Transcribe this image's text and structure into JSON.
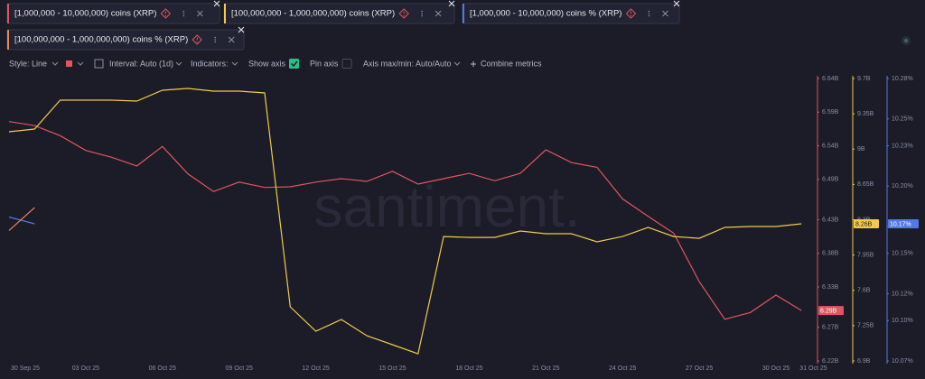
{
  "toolbar": {
    "style": "Style: Line",
    "interval": "Interval: Auto (1d)",
    "indicators": "Indicators:",
    "show_axis": "Show axis",
    "pin_axis": "Pin axis",
    "axis_maxmin": "Axis max/min: Auto/Auto",
    "combine": "Combine metrics"
  },
  "chart_data": {
    "type": "line",
    "watermark": "santiment.",
    "categories": [
      "30 Sep 25",
      null,
      null,
      "03 Oct 25",
      null,
      null,
      "06 Oct 25",
      null,
      null,
      "09 Oct 25",
      null,
      null,
      "12 Oct 25",
      null,
      null,
      "15 Oct 25",
      null,
      null,
      "18 Oct 25",
      null,
      null,
      "21 Oct 25",
      null,
      null,
      "24 Oct 25",
      null,
      null,
      "27 Oct 25",
      null,
      null,
      "30 Oct 25",
      "31 Oct 25"
    ],
    "series": [
      {
        "name": "[1,000,000 - 10,000,000) coins (XRP)",
        "color": "#e0555f",
        "axis": "y",
        "last_label": "6.29B",
        "values": [
          6.576,
          6.57,
          6.555,
          6.533,
          6.523,
          6.51,
          6.539,
          6.498,
          6.472,
          6.486,
          6.478,
          6.479,
          6.486,
          6.491,
          6.487,
          6.502,
          6.483,
          6.491,
          6.499,
          6.488,
          6.499,
          6.534,
          6.515,
          6.508,
          6.461,
          6.435,
          6.41,
          6.338,
          6.282,
          6.292,
          6.318,
          6.295
        ]
      },
      {
        "name": "[100,000,000 - 1,000,000,000) coins (XRP)",
        "color": "#f2c94c",
        "axis": "y2",
        "last_label": "8.26B",
        "values": [
          9.172,
          9.199,
          9.485,
          9.485,
          9.485,
          9.476,
          9.584,
          9.602,
          9.575,
          9.575,
          9.557,
          7.437,
          7.195,
          7.311,
          7.15,
          7.061,
          6.971,
          8.134,
          8.125,
          8.125,
          8.188,
          8.161,
          8.161,
          8.081,
          8.134,
          8.224,
          8.134,
          8.116,
          8.224,
          8.233,
          8.233,
          8.26
        ]
      },
      {
        "name": "[1,000,000 - 10,000,000) coins % (XRP)",
        "color": "#5478e4",
        "axis": "y3",
        "last_label": "10.17%",
        "values": [
          10.177,
          10.172,
          null,
          null,
          null,
          null,
          null,
          null,
          null,
          null,
          null,
          null,
          null,
          null,
          null,
          null,
          null,
          null,
          null,
          null,
          null,
          null,
          null,
          null,
          null,
          null,
          null,
          null,
          null,
          null,
          null,
          null
        ]
      },
      {
        "name": "[100,000,000 - 1,000,000,000) coins % (XRP)",
        "color": "#e8875a",
        "axis": "y3",
        "values": [
          10.167,
          10.184,
          null,
          null,
          null,
          null,
          null,
          null,
          null,
          null,
          null,
          null,
          null,
          null,
          null,
          null,
          null,
          null,
          null,
          null,
          null,
          null,
          null,
          null,
          null,
          null,
          null,
          null,
          null,
          null,
          null,
          null
        ]
      }
    ],
    "ylim": [
      6.22,
      6.64
    ],
    "yticks": [
      {
        "value": 6.64,
        "label": "6.64B"
      },
      {
        "value": 6.59,
        "label": "6.59B"
      },
      {
        "value": 6.54,
        "label": "6.54B"
      },
      {
        "value": 6.49,
        "label": "6.49B"
      },
      {
        "value": 6.43,
        "label": "6.43B"
      },
      {
        "value": 6.38,
        "label": "6.38B"
      },
      {
        "value": 6.33,
        "label": "6.33B"
      },
      {
        "value": 6.27,
        "label": "6.27B"
      },
      {
        "value": 6.22,
        "label": "6.22B"
      }
    ],
    "y2lim": [
      6.9,
      9.7
    ],
    "y2ticks": [
      {
        "value": 9.7,
        "label": "9.7B"
      },
      {
        "value": 9.35,
        "label": "9.35B"
      },
      {
        "value": 9,
        "label": "9B"
      },
      {
        "value": 8.65,
        "label": "8.65B"
      },
      {
        "value": 8.3,
        "label": "8.3B"
      },
      {
        "value": 7.95,
        "label": "7.95B"
      },
      {
        "value": 7.6,
        "label": "7.6B"
      },
      {
        "value": 7.25,
        "label": "7.25B"
      },
      {
        "value": 6.9,
        "label": "6.9B"
      }
    ],
    "y3lim": [
      10.07,
      10.28
    ],
    "y3ticks": [
      {
        "value": 10.28,
        "label": "10.28%"
      },
      {
        "value": 10.25,
        "label": "10.25%"
      },
      {
        "value": 10.23,
        "label": "10.23%"
      },
      {
        "value": 10.2,
        "label": "10.20%"
      },
      {
        "value": 10.17,
        "label": "10.17%"
      },
      {
        "value": 10.15,
        "label": "10.15%"
      },
      {
        "value": 10.12,
        "label": "10.12%"
      },
      {
        "value": 10.1,
        "label": "10.10%"
      },
      {
        "value": 10.07,
        "label": "10.07%"
      }
    ]
  }
}
